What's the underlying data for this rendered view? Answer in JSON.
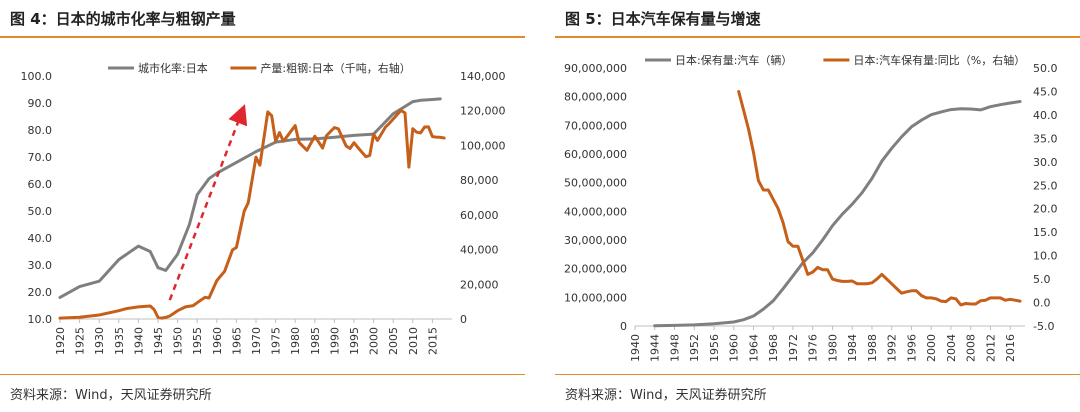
{
  "colors": {
    "gray": "#7f7f7f",
    "orange": "#c65f1a",
    "rule": "#e08a2e",
    "arrow": "#e0262e"
  },
  "chart_data": [
    {
      "type": "line",
      "title": "图 4：日本的城市化率与粗钢产量",
      "source": "资料来源：Wind，天风证券研究所",
      "x_ticks": [
        "1920",
        "1925",
        "1930",
        "1935",
        "1940",
        "1945",
        "1950",
        "1955",
        "1960",
        "1965",
        "1970",
        "1975",
        "1980",
        "1985",
        "1990",
        "1995",
        "2000",
        "2005",
        "2010",
        "2015"
      ],
      "y_left_ticks": [
        "10.0",
        "20.0",
        "30.0",
        "40.0",
        "50.0",
        "60.0",
        "70.0",
        "80.0",
        "90.0",
        "100.0"
      ],
      "y_right_ticks": [
        "0",
        "20,000",
        "40,000",
        "60,000",
        "80,000",
        "100,000",
        "120,000",
        "140,000"
      ],
      "ylim_left": [
        10,
        100
      ],
      "ylim_right": [
        0,
        140000
      ],
      "xlim": [
        1920,
        2020
      ],
      "legend_placement": "top",
      "annotation": "red dashed arrow 1948→1967",
      "series": [
        {
          "name": "城市化率:日本",
          "axis": "left",
          "color": "gray",
          "x": [
            1920,
            1925,
            1930,
            1935,
            1940,
            1943,
            1945,
            1947,
            1950,
            1953,
            1955,
            1958,
            1960,
            1965,
            1970,
            1975,
            1980,
            1985,
            1990,
            1995,
            2000,
            2005,
            2010,
            2012,
            2015,
            2017
          ],
          "y": [
            18,
            22,
            24,
            32,
            37,
            35,
            29,
            28,
            34,
            45,
            56,
            62,
            64,
            68,
            72,
            75.5,
            76.5,
            76.7,
            77.3,
            78,
            78.5,
            86,
            90.5,
            91,
            91.3,
            91.5
          ]
        },
        {
          "name": "产量:粗钢:日本（千吨，右轴）",
          "axis": "right",
          "color": "orange",
          "x": [
            1920,
            1925,
            1930,
            1935,
            1937,
            1940,
            1943,
            1944,
            1945,
            1946,
            1947,
            1948,
            1950,
            1952,
            1954,
            1955,
            1957,
            1958,
            1960,
            1962,
            1964,
            1965,
            1967,
            1968,
            1970,
            1971,
            1973,
            1974,
            1975,
            1976,
            1977,
            1980,
            1981,
            1983,
            1985,
            1987,
            1988,
            1990,
            1991,
            1993,
            1994,
            1995,
            1996,
            1998,
            1999,
            2000,
            2001,
            2003,
            2004,
            2007,
            2008,
            2009,
            2010,
            2011,
            2012,
            2013,
            2014,
            2015,
            2016,
            2017,
            2018
          ],
          "y": [
            500,
            1000,
            2300,
            4800,
            6000,
            7000,
            7500,
            5500,
            1000,
            500,
            900,
            1700,
            4800,
            7000,
            7700,
            9400,
            12500,
            12100,
            22100,
            27500,
            39800,
            41200,
            62100,
            66900,
            93300,
            88600,
            119300,
            117100,
            102300,
            107400,
            102400,
            111400,
            101700,
            97200,
            105300,
            98500,
            105700,
            110300,
            109600,
            99600,
            98300,
            101600,
            98800,
            93500,
            94200,
            106400,
            102900,
            110500,
            112700,
            120200,
            118700,
            87500,
            109600,
            107600,
            107200,
            110600,
            110700,
            105100,
            104800,
            104700,
            104300
          ]
        }
      ]
    },
    {
      "type": "line",
      "title": "图 5：日本汽车保有量与增速",
      "source": "资料来源：Wind，天风证券研究所",
      "x_ticks": [
        "1940",
        "1944",
        "1948",
        "1952",
        "1956",
        "1960",
        "1964",
        "1968",
        "1972",
        "1976",
        "1980",
        "1984",
        "1988",
        "1992",
        "1996",
        "2000",
        "2004",
        "2008",
        "2012",
        "2016"
      ],
      "y_left_ticks": [
        "0",
        "10,000,000",
        "20,000,000",
        "30,000,000",
        "40,000,000",
        "50,000,000",
        "60,000,000",
        "70,000,000",
        "80,000,000",
        "90,000,000"
      ],
      "y_right_ticks": [
        "-5.0",
        "0.0",
        "5.0",
        "10.0",
        "15.0",
        "20.0",
        "25.0",
        "30.0",
        "35.0",
        "40.0",
        "45.0",
        "50.0"
      ],
      "ylim_left": [
        0,
        90000000
      ],
      "ylim_right": [
        -5,
        50
      ],
      "xlim": [
        1940,
        2019
      ],
      "legend_placement": "top",
      "series": [
        {
          "name": "日本:保有量:汽车（辆）",
          "axis": "left",
          "color": "gray",
          "x": [
            1944,
            1948,
            1952,
            1956,
            1960,
            1962,
            1964,
            1966,
            1968,
            1970,
            1972,
            1974,
            1976,
            1978,
            1980,
            1982,
            1984,
            1986,
            1988,
            1990,
            1992,
            1994,
            1996,
            1998,
            2000,
            2002,
            2004,
            2006,
            2008,
            2010,
            2012,
            2014,
            2016,
            2018
          ],
          "y": [
            100000,
            200000,
            400000,
            800000,
            1400000,
            2200000,
            3500000,
            5900000,
            8800000,
            13000000,
            17500000,
            22000000,
            25500000,
            30000000,
            35000000,
            39000000,
            42500000,
            46500000,
            51500000,
            57500000,
            62000000,
            66000000,
            69500000,
            71800000,
            73700000,
            74700000,
            75500000,
            75800000,
            75700000,
            75400000,
            76500000,
            77200000,
            77800000,
            78300000
          ]
        },
        {
          "name": "日本:汽车保有量:同比（%，右轴）",
          "axis": "right",
          "color": "orange",
          "x": [
            1961,
            1962,
            1963,
            1964,
            1965,
            1966,
            1967,
            1968,
            1969,
            1970,
            1971,
            1972,
            1973,
            1974,
            1975,
            1976,
            1977,
            1978,
            1979,
            1980,
            1981,
            1982,
            1983,
            1984,
            1985,
            1986,
            1987,
            1988,
            1989,
            1990,
            1991,
            1992,
            1993,
            1994,
            1995,
            1996,
            1997,
            1998,
            1999,
            2000,
            2001,
            2002,
            2003,
            2004,
            2005,
            2006,
            2007,
            2008,
            2009,
            2010,
            2011,
            2012,
            2013,
            2014,
            2015,
            2016,
            2017,
            2018
          ],
          "y": [
            45,
            41,
            37,
            32,
            26,
            24,
            24,
            22,
            20,
            17,
            13,
            12,
            12,
            9,
            6,
            6.5,
            7.5,
            7,
            7,
            5,
            4.7,
            4.5,
            4.5,
            4.6,
            4,
            4,
            4,
            4.2,
            5,
            6,
            5,
            4,
            3,
            2,
            2.3,
            2.5,
            2.5,
            1.5,
            1,
            1,
            0.8,
            0.3,
            0.2,
            1,
            0.8,
            -0.5,
            -0.2,
            -0.3,
            -0.3,
            0.4,
            0.5,
            1,
            1,
            1,
            0.5,
            0.7,
            0.5,
            0.3
          ]
        }
      ]
    }
  ]
}
